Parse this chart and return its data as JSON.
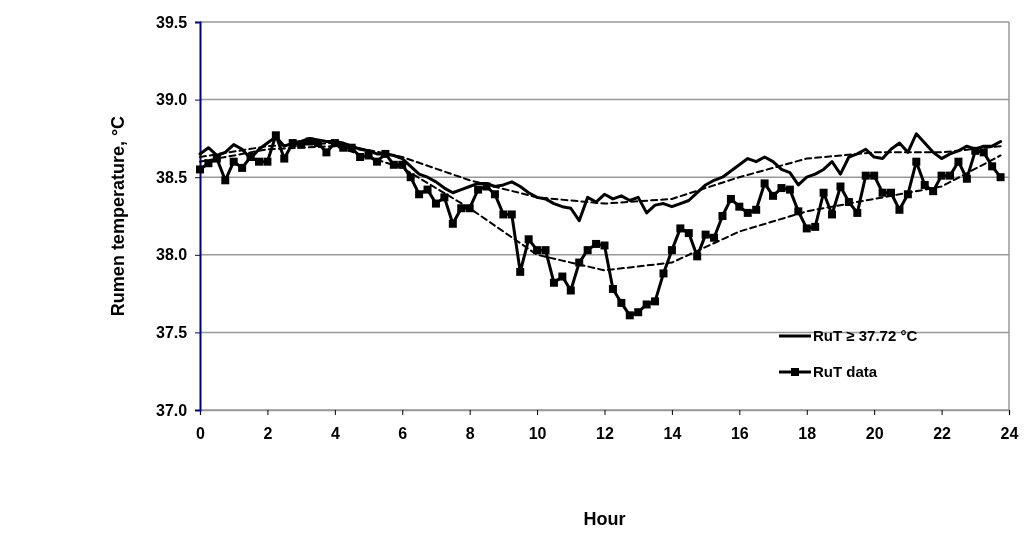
{
  "chart_data": {
    "type": "line",
    "xlabel": "Hour",
    "ylabel": "Rumen temperature, °C",
    "xlim": [
      0,
      24
    ],
    "xticks": [
      0,
      2,
      4,
      6,
      8,
      10,
      12,
      14,
      16,
      18,
      20,
      22,
      24
    ],
    "ylim": [
      37.0,
      39.5
    ],
    "yticks": [
      {
        "value": 37.0,
        "label": "37.0"
      },
      {
        "value": 37.5,
        "label": "37.5"
      },
      {
        "value": 38.0,
        "label": "38.0"
      },
      {
        "value": 38.5,
        "label": "38.5"
      },
      {
        "value": 39.0,
        "label": "39.0"
      },
      {
        "value": 39.5,
        "label": "39.5"
      }
    ],
    "grid": "y",
    "legend": "bottom right",
    "x": [
      0,
      0.25,
      0.5,
      0.75,
      1,
      1.25,
      1.5,
      1.75,
      2,
      2.25,
      2.5,
      2.75,
      3,
      3.25,
      3.5,
      3.75,
      4,
      4.25,
      4.5,
      4.75,
      5,
      5.25,
      5.5,
      5.75,
      6,
      6.25,
      6.5,
      6.75,
      7,
      7.25,
      7.5,
      7.75,
      8,
      8.25,
      8.5,
      8.75,
      9,
      9.25,
      9.5,
      9.75,
      10,
      10.25,
      10.5,
      10.75,
      11,
      11.25,
      11.5,
      11.75,
      12,
      12.25,
      12.5,
      12.75,
      13,
      13.25,
      13.5,
      13.75,
      14,
      14.25,
      14.5,
      14.75,
      15,
      15.25,
      15.5,
      15.75,
      16,
      16.25,
      16.5,
      16.75,
      17,
      17.25,
      17.5,
      17.75,
      18,
      18.25,
      18.5,
      18.75,
      19,
      19.25,
      19.5,
      19.75,
      20,
      20.25,
      20.5,
      20.75,
      21,
      21.25,
      21.5,
      21.75,
      22,
      22.25,
      22.5,
      22.75,
      23,
      23.25,
      23.5,
      23.75
    ],
    "series": [
      {
        "name": "RuT ≥ 37.72 °C",
        "color": "#000000",
        "marker": "none",
        "line_style": "solid",
        "values": [
          38.65,
          38.69,
          38.64,
          38.66,
          38.71,
          38.68,
          38.62,
          38.68,
          38.72,
          38.76,
          38.7,
          38.72,
          38.73,
          38.75,
          38.74,
          38.73,
          38.73,
          38.72,
          38.7,
          38.68,
          38.67,
          38.65,
          38.65,
          38.64,
          38.62,
          38.57,
          38.52,
          38.5,
          38.47,
          38.43,
          38.4,
          38.42,
          38.44,
          38.46,
          38.46,
          38.44,
          38.45,
          38.47,
          38.44,
          38.4,
          38.37,
          38.36,
          38.33,
          38.31,
          38.3,
          38.22,
          38.37,
          38.34,
          38.39,
          38.36,
          38.38,
          38.35,
          38.37,
          38.27,
          38.32,
          38.33,
          38.31,
          38.33,
          38.35,
          38.4,
          38.45,
          38.48,
          38.5,
          38.54,
          38.58,
          38.62,
          38.6,
          38.63,
          38.6,
          38.55,
          38.53,
          38.45,
          38.5,
          38.52,
          38.55,
          38.6,
          38.52,
          38.63,
          38.65,
          38.68,
          38.63,
          38.62,
          38.68,
          38.72,
          38.66,
          38.78,
          38.72,
          38.66,
          38.62,
          38.65,
          38.67,
          38.7,
          38.68,
          38.7,
          38.7,
          38.73
        ]
      },
      {
        "name": "RuT data",
        "color": "#000000",
        "marker": "square",
        "line_style": "solid",
        "values": [
          38.55,
          38.59,
          38.62,
          38.48,
          38.6,
          38.56,
          38.63,
          38.6,
          38.6,
          38.77,
          38.62,
          38.72,
          38.71,
          38.73,
          38.72,
          38.66,
          38.72,
          38.69,
          38.69,
          38.63,
          38.64,
          38.6,
          38.65,
          38.58,
          38.58,
          38.5,
          38.39,
          38.42,
          38.33,
          38.37,
          38.2,
          38.3,
          38.3,
          38.42,
          38.44,
          38.39,
          38.26,
          38.26,
          37.89,
          38.1,
          38.03,
          38.03,
          37.82,
          37.86,
          37.77,
          37.95,
          38.03,
          38.07,
          38.06,
          37.78,
          37.69,
          37.61,
          37.63,
          37.68,
          37.7,
          37.88,
          38.03,
          38.17,
          38.14,
          37.99,
          38.13,
          38.11,
          38.25,
          38.36,
          38.31,
          38.27,
          38.29,
          38.46,
          38.38,
          38.43,
          38.42,
          38.28,
          38.17,
          38.18,
          38.4,
          38.26,
          38.44,
          38.34,
          38.27,
          38.51,
          38.51,
          38.4,
          38.4,
          38.29,
          38.39,
          38.6,
          38.45,
          38.41,
          38.51,
          38.51,
          38.6,
          38.49,
          38.67,
          38.66,
          38.57,
          38.5
        ]
      },
      {
        "color": "#000000",
        "marker": "none",
        "line_style": "dashed",
        "x": [
          0,
          2,
          4,
          6,
          8,
          10,
          12,
          14,
          16,
          18,
          20,
          22,
          23.75
        ],
        "values": [
          38.63,
          38.7,
          38.72,
          38.63,
          38.48,
          38.37,
          38.33,
          38.36,
          38.5,
          38.62,
          38.66,
          38.66,
          38.7
        ]
      },
      {
        "color": "#000000",
        "marker": "none",
        "line_style": "dashed",
        "x": [
          0,
          2,
          4,
          6,
          8,
          10,
          12,
          14,
          16,
          18,
          20,
          22,
          23.75
        ],
        "values": [
          38.6,
          38.68,
          38.7,
          38.56,
          38.3,
          38.0,
          37.9,
          37.95,
          38.15,
          38.28,
          38.36,
          38.44,
          38.64
        ]
      }
    ]
  }
}
